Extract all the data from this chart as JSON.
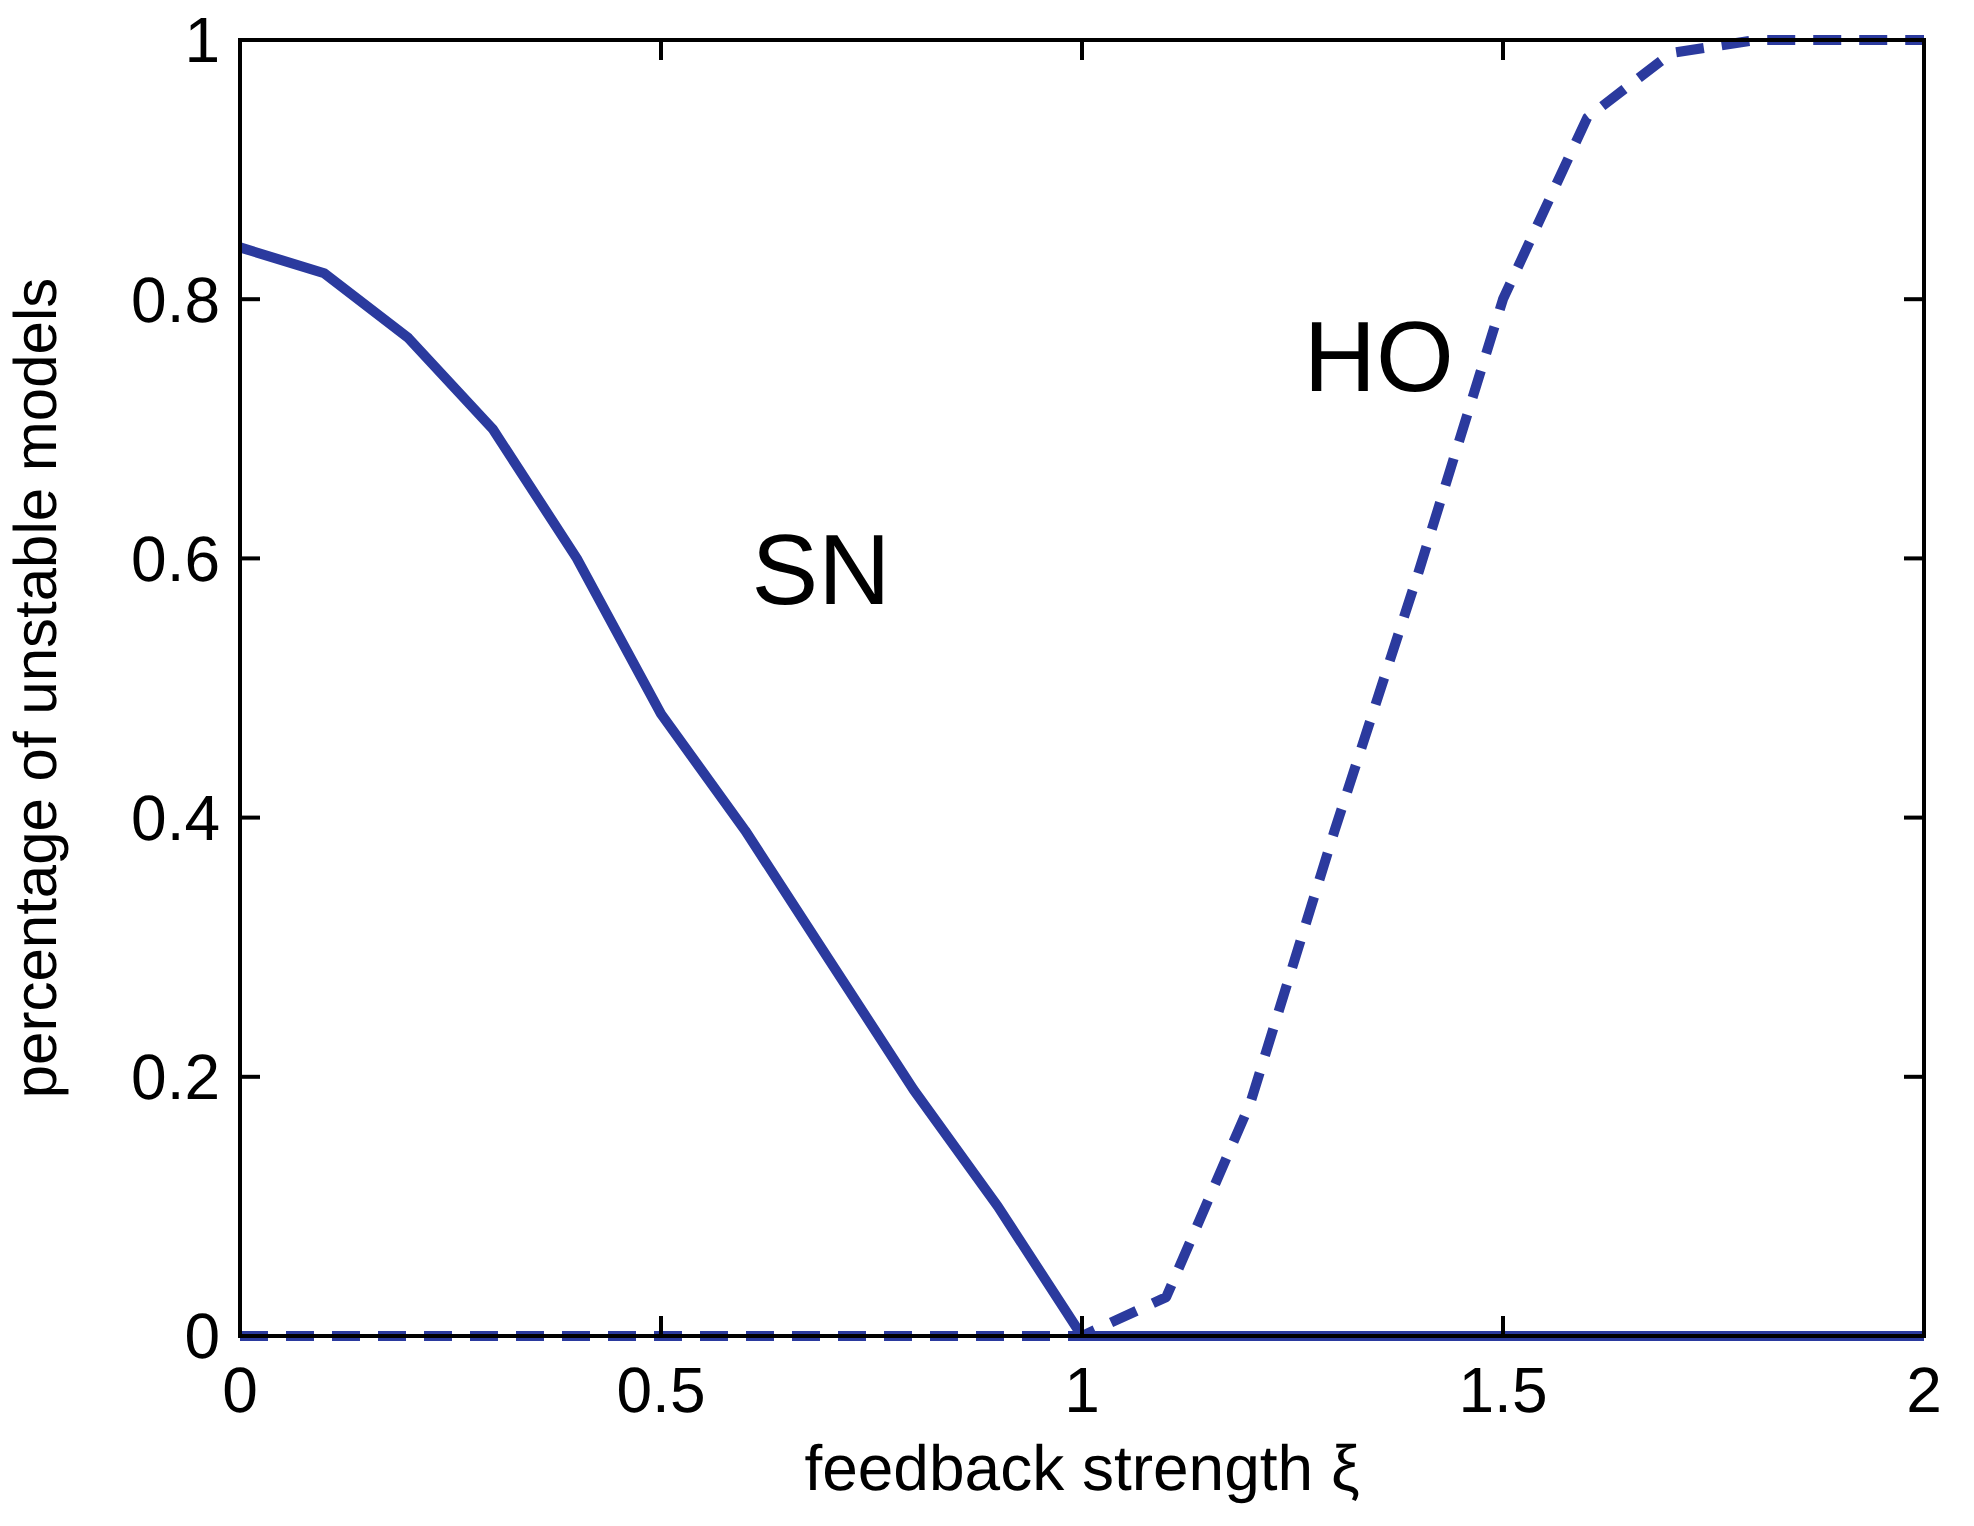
{
  "chart_data": {
    "type": "line",
    "xlabel": "feedback strength ξ",
    "ylabel": "percentage of unstable models",
    "xlim": [
      0,
      2
    ],
    "ylim": [
      0,
      1
    ],
    "xticks": [
      0,
      0.5,
      1,
      1.5,
      2
    ],
    "yticks": [
      0,
      0.2,
      0.4,
      0.6,
      0.8,
      1
    ],
    "grid": false,
    "marker": "none",
    "series": [
      {
        "name": "SN",
        "color": "#2b3a9e",
        "line_style": "solid",
        "x": [
          0,
          0.1,
          0.2,
          0.3,
          0.4,
          0.5,
          0.6,
          0.7,
          0.8,
          0.9,
          1,
          1.5,
          2
        ],
        "values": [
          0.84,
          0.82,
          0.77,
          0.7,
          0.6,
          0.48,
          0.39,
          0.29,
          0.19,
          0.1,
          0,
          0,
          0
        ]
      },
      {
        "name": "HO",
        "color": "#2b3a9e",
        "line_style": "dashed",
        "x": [
          0,
          0.5,
          1,
          1.1,
          1.2,
          1.3,
          1.4,
          1.5,
          1.6,
          1.7,
          1.8,
          2
        ],
        "values": [
          0,
          0,
          0,
          0.03,
          0.18,
          0.39,
          0.59,
          0.8,
          0.94,
          0.99,
          1,
          1
        ]
      }
    ]
  }
}
